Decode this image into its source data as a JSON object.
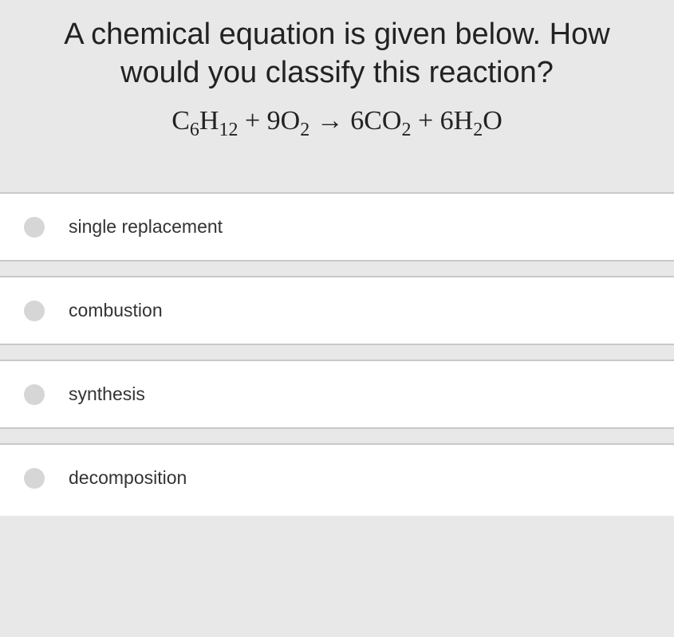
{
  "question": {
    "text": "A chemical equation is given below. How would you classify this reaction?",
    "equation_parts": {
      "r1_base": "C",
      "r1_sub1": "6",
      "r1_mid": "H",
      "r1_sub2": "12",
      "plus1": " + ",
      "r2_coef": "9",
      "r2_base": "O",
      "r2_sub": "2",
      "arrow": " → ",
      "p1_coef": "6",
      "p1_base": "CO",
      "p1_sub": "2",
      "plus2": " + ",
      "p2_coef": "6",
      "p2_base": "H",
      "p2_sub": "2",
      "p2_end": "O"
    }
  },
  "options": [
    {
      "label": "single replacement"
    },
    {
      "label": "combustion"
    },
    {
      "label": "synthesis"
    },
    {
      "label": "decomposition"
    }
  ],
  "styling": {
    "background_color": "#e8e8e8",
    "option_background": "#ffffff",
    "border_color": "#c8c8c8",
    "radio_color": "#d6d6d6",
    "text_color": "#222222",
    "question_fontsize": 38,
    "equation_fontsize": 34,
    "option_fontsize": 23
  }
}
